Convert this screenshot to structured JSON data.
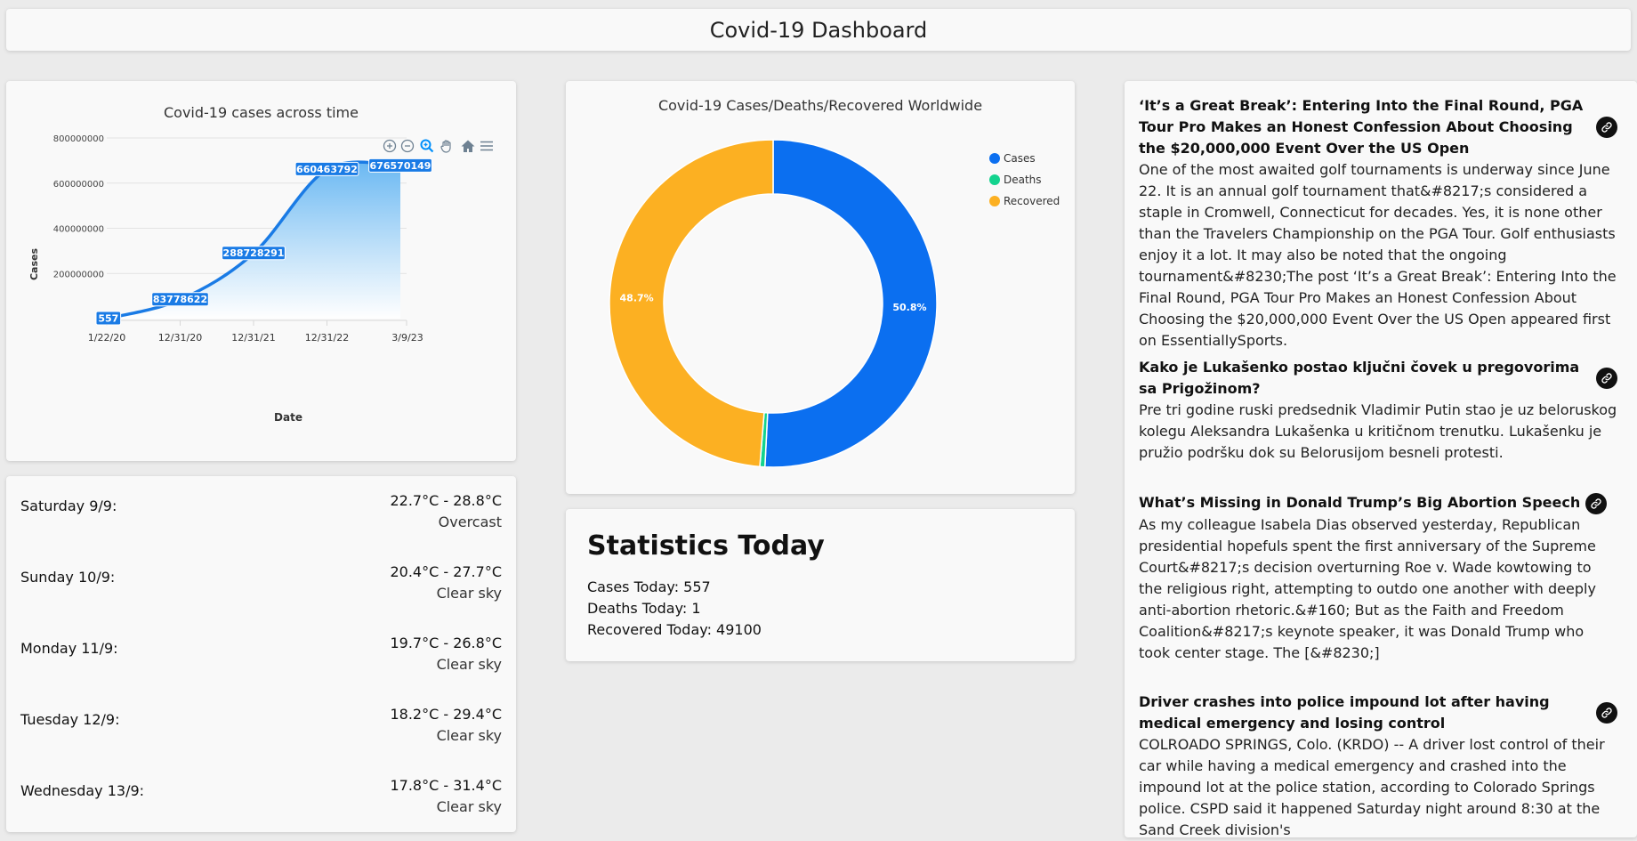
{
  "header": {
    "title": "Covid-19 Dashboard"
  },
  "line_chart": {
    "title": "Covid-19 cases across time",
    "toolbar_icons": [
      "zoom-in-icon",
      "zoom-out-icon",
      "selection-zoom-icon",
      "pan-hand-icon",
      "home-reset-icon",
      "menu-icon"
    ]
  },
  "pie_chart": {
    "title": "Covid-19 Cases/Deaths/Recovered Worldwide"
  },
  "chart_data": [
    {
      "type": "area",
      "title": "Covid-19 cases across time",
      "xlabel": "Date",
      "ylabel": "Cases",
      "x": [
        "1/22/20",
        "12/31/20",
        "12/31/21",
        "12/31/22",
        "3/9/23"
      ],
      "series": [
        {
          "values": [
            557,
            83778622,
            288728291,
            660463792,
            676570149
          ]
        }
      ],
      "data_labels": [
        "557",
        "83778622",
        "288728291",
        "660463792",
        "676570149"
      ],
      "y_ticks": [
        "200000000",
        "400000000",
        "600000000",
        "800000000"
      ],
      "ylim": [
        0,
        800000000
      ],
      "grid": true,
      "colors": {
        "line": "#1a7be5",
        "fill_top": "#6ab8f2",
        "label_bg": "#1a7be5"
      }
    },
    {
      "type": "pie",
      "title": "Covid-19 Cases/Deaths/Recovered Worldwide",
      "donut": true,
      "legend_position": "top-right",
      "categories": [
        "Cases",
        "Deaths",
        "Recovered"
      ],
      "values": [
        50.8,
        0.5,
        48.7
      ],
      "labels": [
        "50.8%",
        "",
        "48.7%"
      ],
      "colors": [
        "#0b6ff0",
        "#13d38e",
        "#fcb022"
      ]
    }
  ],
  "weather": [
    {
      "day": "Saturday 9/9:",
      "temp": "22.7°C - 28.8°C",
      "desc": "Overcast"
    },
    {
      "day": "Sunday 10/9:",
      "temp": "20.4°C - 27.7°C",
      "desc": "Clear sky"
    },
    {
      "day": "Monday 11/9:",
      "temp": "19.7°C - 26.8°C",
      "desc": "Clear sky"
    },
    {
      "day": "Tuesday 12/9:",
      "temp": "18.2°C - 29.4°C",
      "desc": "Clear sky"
    },
    {
      "day": "Wednesday 13/9:",
      "temp": "17.8°C - 31.4°C",
      "desc": "Clear sky"
    }
  ],
  "stats": {
    "title": "Statistics Today",
    "cases": "Cases Today: 557",
    "deaths": "Deaths Today: 1",
    "recovered": "Recovered Today: 49100"
  },
  "news": [
    {
      "title": "‘It’s a Great Break’: Entering Into the Final Round, PGA Tour Pro Makes an Honest Confession About Choosing the $20,000,000 Event Over the US Open",
      "desc": "One of the most awaited golf tournaments is underway since June 22. It is an annual golf tournament that&#8217;s considered a staple in Cromwell, Connecticut for decades. Yes, it is none other than the Travelers Championship on the PGA Tour. Golf enthusiasts enjoy it a lot. It may also be noted that the ongoing tournament&#8230;The post ‘It’s a Great Break’: Entering Into the Final Round, PGA Tour Pro Makes an Honest Confession About Choosing the $20,000,000 Event Over the US Open appeared first on EssentiallySports."
    },
    {
      "title": "Kako je Lukašenko postao ključni čovek u pregovorima sa Prigožinom?",
      "desc": "Pre tri godine ruski predsednik Vladimir Putin stao je uz beloruskog kolegu Aleksandra Lukašenka u kritičnom trenutku. Lukašenku je pružio podršku dok su Belorusijom besneli protesti."
    },
    {
      "title": "What’s Missing in Donald Trump’s Big Abortion Speech",
      "desc": "As my colleague Isabela Dias observed yesterday, Republican presidential hopefuls spent the first anniversary of the Supreme Court&#8217;s decision overturning Roe v. Wade kowtowing to the religious right, attempting to outdo one another with deeply anti-abortion rhetoric.&#160; But as the Faith and Freedom Coalition&#8217;s keynote speaker, it was Donald Trump who took center stage. The [&#8230;]"
    },
    {
      "title": "Driver crashes into police impound lot after having medical emergency and losing control",
      "desc": "COLROADO SPRINGS, Colo. (KRDO) -- A driver lost control of their car while having a medical emergency and crashed into the impound lot at the police station, according to Colorado Springs police. CSPD said it happened Saturday night around 8:30 at the Sand Creek division's"
    }
  ]
}
